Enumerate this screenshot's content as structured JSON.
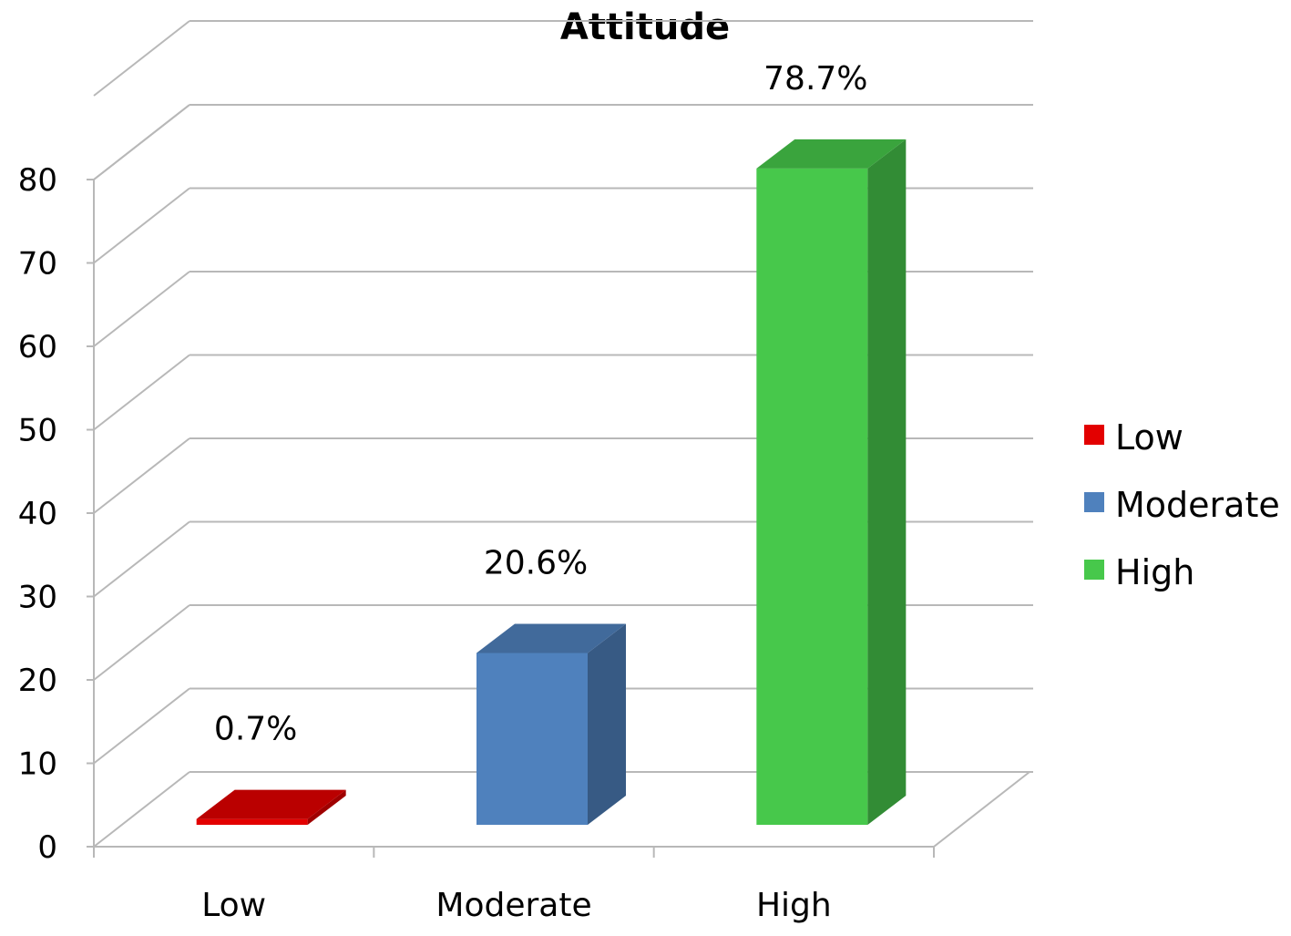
{
  "chart_data": {
    "type": "bar",
    "title": "Attitude",
    "categories": [
      "Low",
      "Moderate",
      "High"
    ],
    "values": [
      0.7,
      20.6,
      78.7
    ],
    "data_labels": [
      "0.7%",
      "20.6%",
      "78.7%"
    ],
    "colors": [
      "#e30000",
      "#4f81bd",
      "#47c84b"
    ],
    "ylim": [
      0,
      80
    ],
    "yticks": [
      "0",
      "10",
      "20",
      "30",
      "40",
      "50",
      "60",
      "70",
      "80"
    ],
    "grid": true,
    "style": "3d",
    "legend": {
      "placement": "right",
      "entries": [
        "Low",
        "Moderate",
        "High"
      ]
    }
  }
}
